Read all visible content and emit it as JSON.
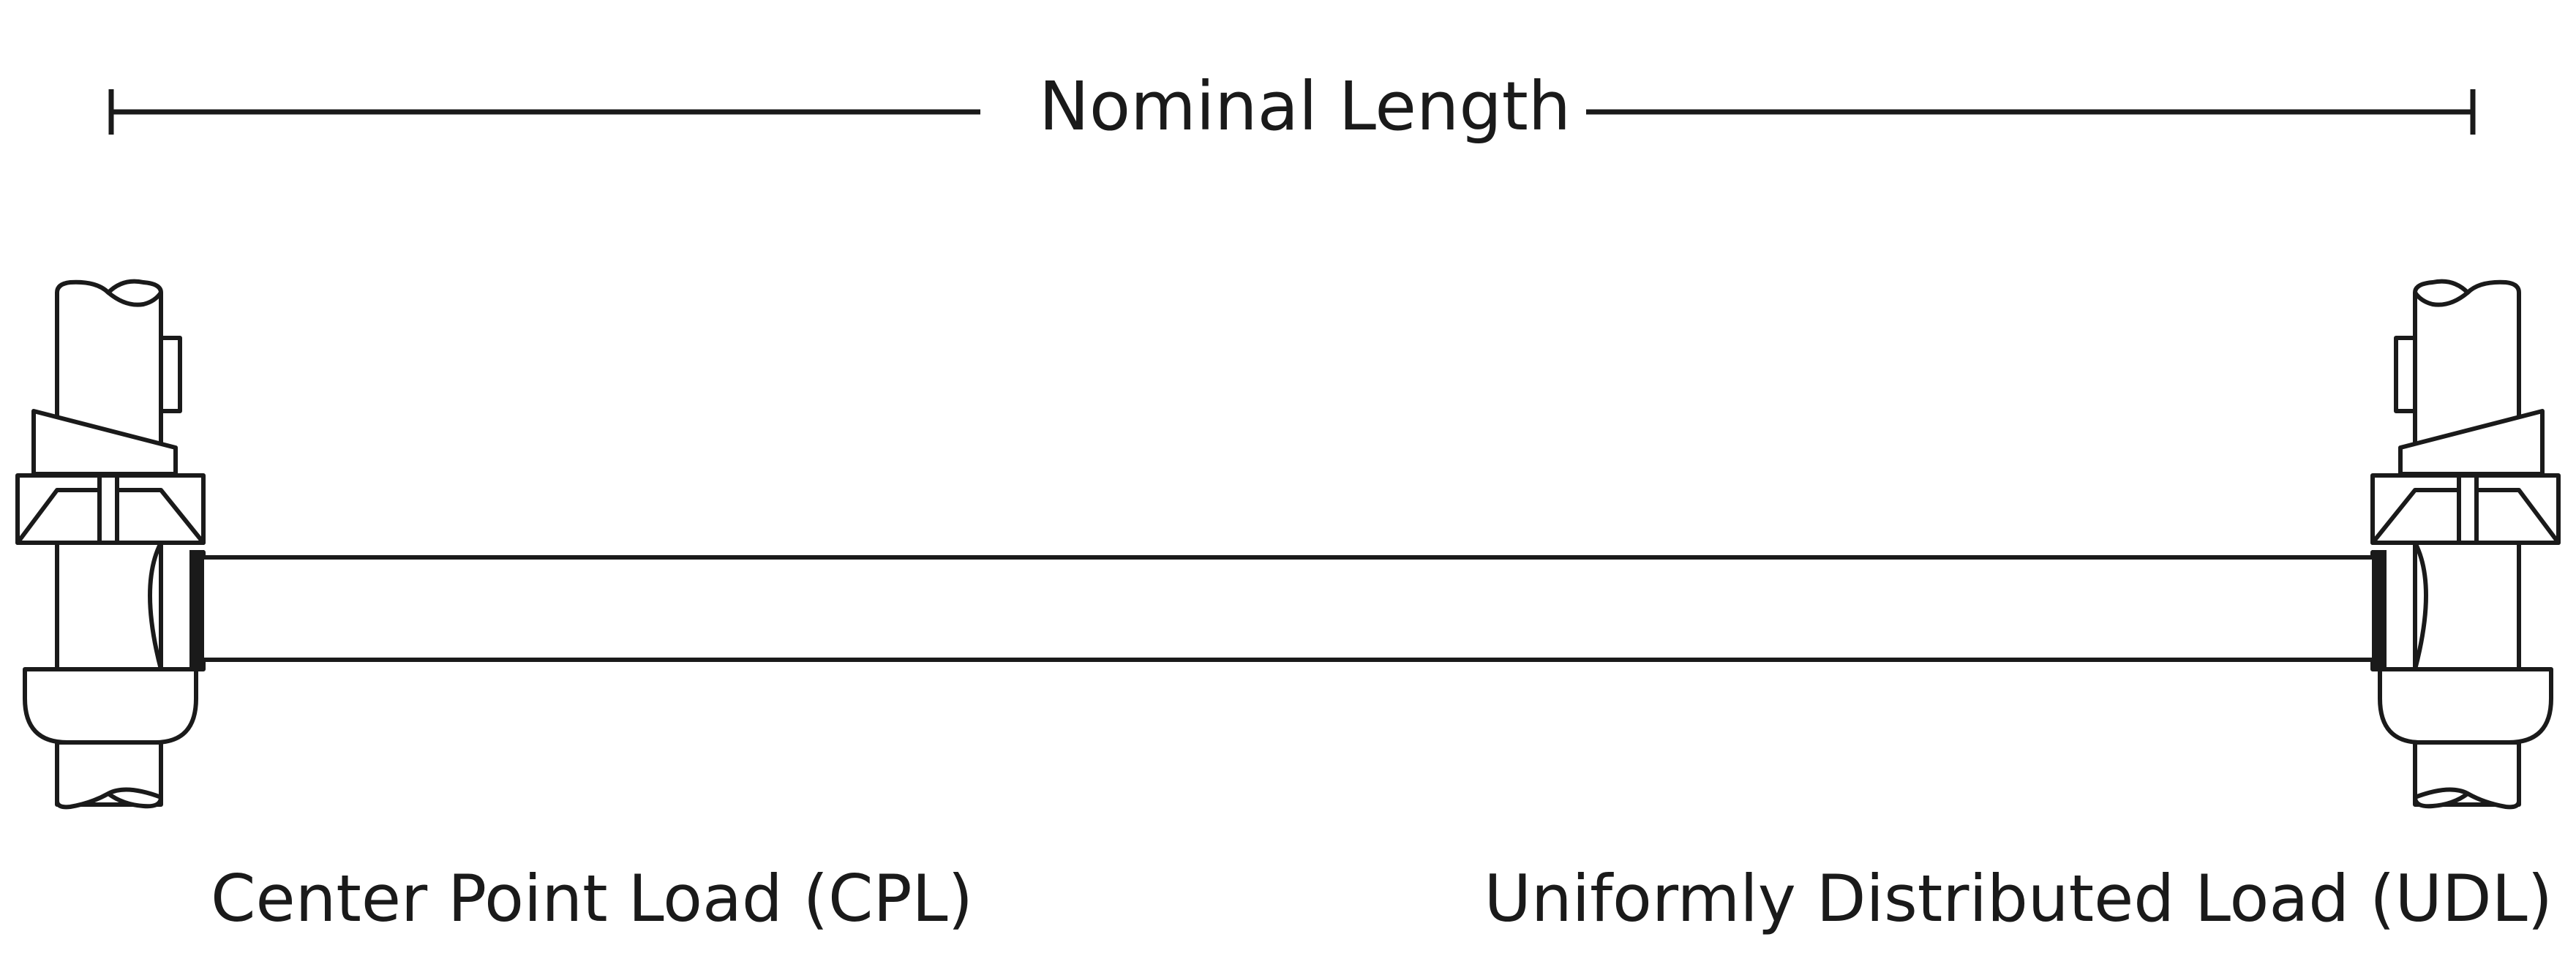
{
  "dimension": {
    "label": "Nominal Length"
  },
  "loads": {
    "center_point": "Center Point Load (CPL)",
    "uniform": "Uniformly Distributed Load (UDL)"
  },
  "colors": {
    "stroke": "#1a1a1a",
    "background": "#ffffff"
  }
}
